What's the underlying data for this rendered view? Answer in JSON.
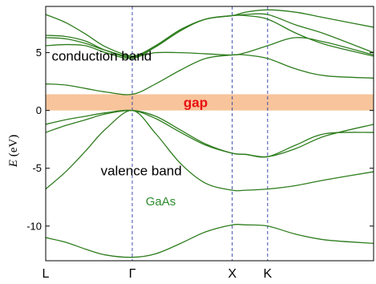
{
  "chart_data": {
    "type": "line",
    "title": "",
    "xlabel": "",
    "ylabel": "E (eV)",
    "ylabel_italic_part": "E",
    "ylabel_unit_part": " (eV)",
    "ylim": [
      -13,
      9
    ],
    "yticks": [
      5,
      0,
      -5,
      -10
    ],
    "ytick_labels": [
      "5",
      "0",
      "-5",
      "-10"
    ],
    "kpoints": [
      {
        "label": "L",
        "x": 0.0
      },
      {
        "label": "Γ",
        "x": 0.866
      },
      {
        "label": "X",
        "x": 1.866
      },
      {
        "label": "K",
        "x": 2.22
      },
      {
        "label": "",
        "x": 3.28
      }
    ],
    "xlim": [
      0,
      3.28
    ],
    "gap_band": {
      "label": "gap",
      "ymin": 0,
      "ymax": 1.4,
      "color": "#f7c49b"
    },
    "annotations": [
      {
        "text": "conduction band",
        "x": 0.06,
        "y": 4.3
      },
      {
        "text": "valence band",
        "x": 0.55,
        "y": -5.6
      },
      {
        "text": "GaAs",
        "x": 1.0,
        "y": -8.2
      }
    ],
    "band_color": "#2e7d1e",
    "grid": false,
    "bands": [
      {
        "x": [
          0.0,
          0.2,
          0.4,
          0.6,
          0.866,
          1.1,
          1.35,
          1.6,
          1.866,
          2.0,
          2.22,
          2.5,
          2.8,
          3.28
        ],
        "y": [
          -11.0,
          -11.4,
          -12.0,
          -12.5,
          -12.7,
          -12.4,
          -11.5,
          -10.5,
          -9.9,
          -9.9,
          -10.0,
          -10.7,
          -11.2,
          -11.5
        ]
      },
      {
        "x": [
          0.0,
          0.2,
          0.4,
          0.6,
          0.866,
          1.1,
          1.35,
          1.6,
          1.866,
          2.0,
          2.22,
          2.5,
          2.8,
          3.28
        ],
        "y": [
          -6.8,
          -5.3,
          -3.5,
          -1.6,
          0.0,
          -2.0,
          -4.6,
          -6.3,
          -6.9,
          -6.9,
          -6.8,
          -6.5,
          -6.0,
          -5.3
        ]
      },
      {
        "x": [
          0.0,
          0.2,
          0.4,
          0.6,
          0.866,
          1.1,
          1.35,
          1.6,
          1.866,
          2.0,
          2.22,
          2.5,
          2.8,
          3.28
        ],
        "y": [
          -1.2,
          -0.8,
          -0.5,
          -0.2,
          0.0,
          -0.7,
          -1.9,
          -3.0,
          -3.7,
          -3.8,
          -4.0,
          -3.3,
          -2.2,
          -1.2
        ]
      },
      {
        "x": [
          0.0,
          0.2,
          0.4,
          0.6,
          0.866,
          1.1,
          1.35,
          1.6,
          1.866,
          2.0,
          2.22,
          2.5,
          2.8,
          3.28
        ],
        "y": [
          -1.9,
          -1.3,
          -0.8,
          -0.3,
          0.0,
          -0.5,
          -1.7,
          -2.9,
          -3.7,
          -3.8,
          -4.0,
          -3.0,
          -2.0,
          -1.9
        ]
      },
      {
        "x": [
          0.0,
          0.2,
          0.4,
          0.6,
          0.866,
          1.1,
          1.35,
          1.6,
          1.866,
          2.0,
          2.22,
          2.5,
          2.8,
          3.28
        ],
        "y": [
          2.3,
          2.2,
          1.9,
          1.6,
          1.4,
          2.3,
          3.5,
          4.5,
          4.8,
          4.8,
          4.5,
          3.6,
          3.0,
          2.8
        ]
      },
      {
        "x": [
          0.0,
          0.2,
          0.4,
          0.6,
          0.866,
          1.1,
          1.35,
          1.6,
          1.866,
          2.0,
          2.22,
          2.5,
          2.8,
          3.28
        ],
        "y": [
          5.6,
          5.7,
          5.6,
          5.0,
          4.5,
          5.5,
          6.9,
          7.9,
          8.2,
          8.2,
          7.9,
          6.7,
          5.7,
          4.7
        ]
      },
      {
        "x": [
          0.0,
          0.2,
          0.4,
          0.6,
          0.866,
          1.1,
          1.35,
          1.6,
          1.866,
          2.0,
          2.22,
          2.5,
          2.8,
          3.28
        ],
        "y": [
          6.5,
          6.4,
          6.0,
          5.2,
          4.6,
          5.6,
          7.0,
          7.9,
          8.2,
          8.3,
          8.3,
          7.4,
          6.6,
          5.0
        ]
      },
      {
        "x": [
          0.0,
          0.2,
          0.4,
          0.6,
          0.866,
          1.1,
          1.35,
          1.6,
          1.866,
          2.0,
          2.22,
          2.5,
          2.8,
          3.28
        ],
        "y": [
          8.3,
          7.6,
          6.6,
          5.5,
          4.7,
          5.0,
          5.0,
          4.9,
          4.8,
          5.0,
          5.6,
          6.3,
          5.9,
          4.8
        ]
      },
      {
        "x": [
          0.0,
          0.2,
          0.4,
          0.6,
          0.866,
          1.1,
          1.35,
          1.6,
          1.866,
          2.0,
          2.22,
          2.5,
          2.8,
          3.28
        ],
        "y": [
          6.3,
          6.2,
          5.8,
          5.2,
          4.7,
          5.6,
          7.0,
          7.9,
          8.2,
          8.5,
          8.7,
          8.5,
          8.0,
          7.2
        ]
      }
    ]
  }
}
